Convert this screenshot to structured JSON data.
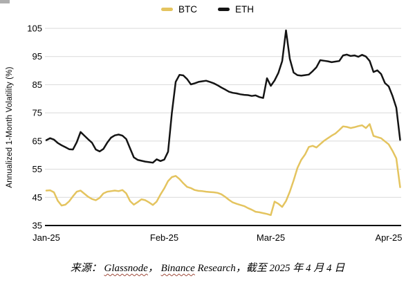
{
  "legend": {
    "btc_label": "BTC",
    "eth_label": "ETH"
  },
  "source": {
    "prefix": "来源： ",
    "link1": "Glassnode",
    "sep1": "， ",
    "link2": "Binance",
    "suffix": " Research，截至 2025 年 4 月 4 日"
  },
  "colors": {
    "btc": "#E4C45F",
    "eth": "#141414",
    "grid": "#d9d9d9",
    "axis": "#000000",
    "squiggle": "#9e4a3a"
  },
  "chart_data": {
    "type": "line",
    "title": "",
    "xlabel": "",
    "ylabel": "Annualized 1-Month Volatility (%)",
    "ylim": [
      35,
      105
    ],
    "yticks": [
      35,
      45,
      55,
      65,
      75,
      85,
      95,
      105
    ],
    "grid": "horizontal",
    "legend_position": "top-center",
    "x_range": [
      "2025-01-01",
      "2025-04-04"
    ],
    "frequency": "daily",
    "xticks": [
      {
        "label": "Jan-25",
        "day": 0
      },
      {
        "label": "Feb-25",
        "day": 31
      },
      {
        "label": "Mar-25",
        "day": 59
      },
      {
        "label": "Apr-25",
        "day": 90
      }
    ],
    "series": [
      {
        "name": "BTC",
        "color": "#E4C45F",
        "values": [
          47.4,
          47.5,
          46.8,
          43.8,
          42.1,
          42.4,
          43.6,
          45.4,
          47.0,
          47.4,
          46.3,
          45.2,
          44.4,
          44.0,
          44.8,
          46.4,
          47.0,
          47.2,
          47.4,
          47.2,
          47.6,
          46.4,
          43.7,
          42.4,
          43.3,
          44.3,
          44.0,
          43.2,
          42.3,
          43.5,
          46.0,
          48.2,
          50.8,
          52.2,
          52.6,
          51.5,
          50.0,
          48.7,
          48.3,
          47.6,
          47.3,
          47.2,
          47.0,
          46.9,
          46.8,
          46.6,
          46.1,
          45.2,
          44.1,
          43.2,
          42.7,
          42.3,
          41.9,
          41.2,
          40.6,
          39.9,
          39.7,
          39.4,
          39.1,
          38.7,
          43.5,
          42.7,
          41.6,
          43.7,
          47.0,
          51.0,
          55.4,
          58.3,
          60.2,
          62.9,
          63.3,
          62.7,
          63.9,
          65.1,
          66.0,
          66.9,
          67.7,
          68.9,
          70.2,
          70.0,
          69.6,
          69.9,
          70.3,
          70.6,
          69.6,
          71.0,
          66.8,
          66.4,
          66.0,
          64.9,
          63.8,
          61.5,
          58.8,
          48.6
        ]
      },
      {
        "name": "ETH",
        "color": "#141414",
        "values": [
          65.3,
          66.0,
          65.5,
          64.3,
          63.5,
          62.8,
          62.1,
          62.0,
          64.6,
          68.2,
          66.9,
          65.6,
          64.4,
          62.0,
          61.3,
          62.2,
          64.4,
          66.2,
          67.0,
          67.3,
          66.9,
          65.7,
          62.4,
          59.2,
          58.3,
          58.0,
          57.7,
          57.5,
          57.3,
          58.5,
          57.9,
          58.4,
          61.2,
          75.0,
          86.0,
          88.5,
          88.3,
          87.0,
          85.1,
          85.5,
          86.0,
          86.2,
          86.4,
          86.0,
          85.5,
          84.8,
          84.0,
          83.3,
          82.5,
          82.1,
          81.9,
          81.6,
          81.4,
          81.3,
          81.0,
          81.2,
          80.6,
          80.3,
          87.3,
          84.6,
          86.5,
          89.2,
          93.4,
          104.3,
          94.2,
          89.3,
          88.4,
          88.2,
          88.4,
          88.6,
          89.8,
          91.2,
          93.7,
          93.5,
          93.3,
          93.0,
          93.2,
          93.4,
          95.4,
          95.7,
          95.2,
          95.4,
          94.9,
          95.6,
          95.0,
          93.4,
          89.5,
          90.1,
          88.8,
          85.6,
          84.4,
          81.0,
          76.8,
          65.4
        ]
      }
    ]
  }
}
